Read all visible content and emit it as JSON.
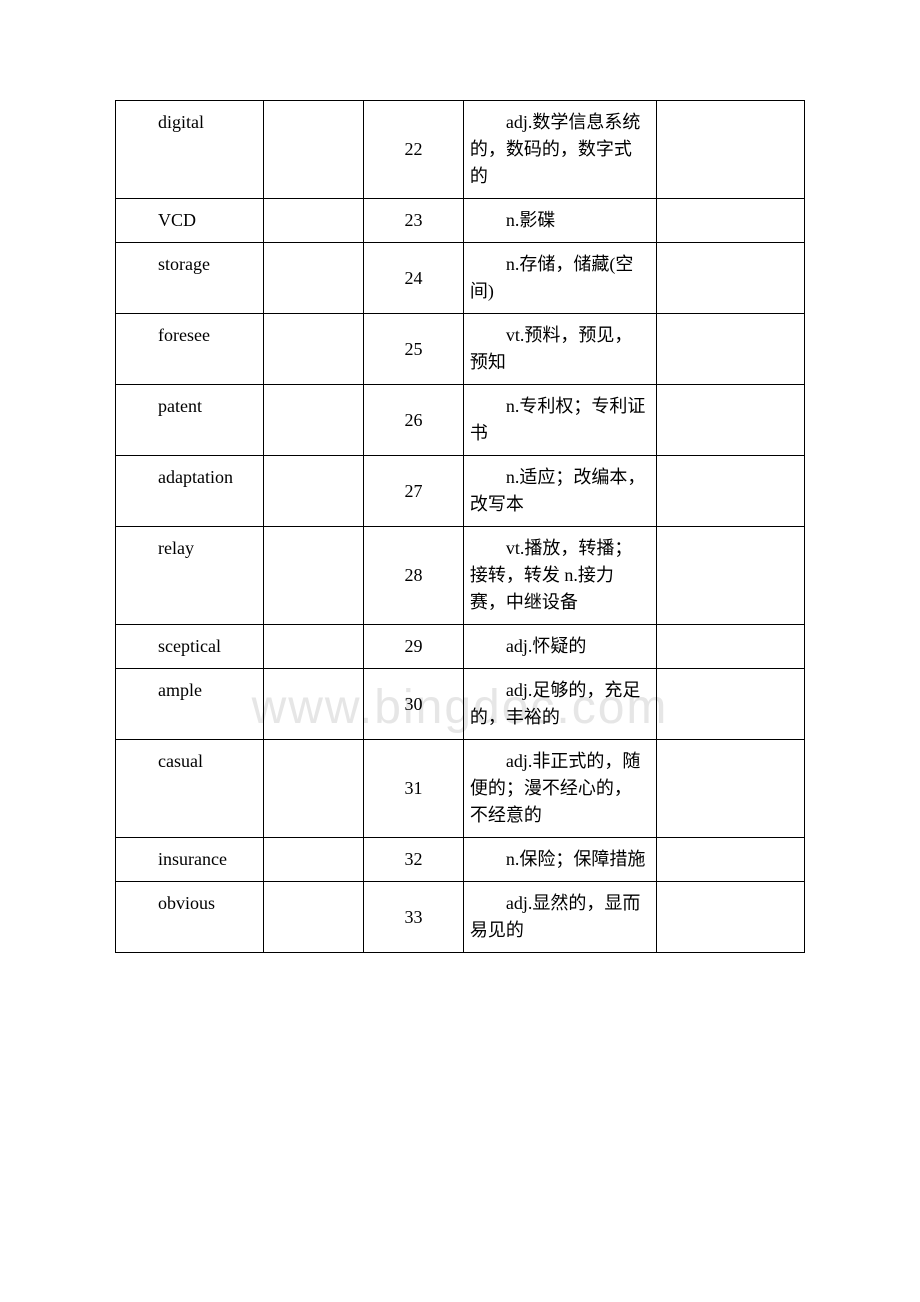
{
  "watermark": "www.bingdoc.com",
  "table": {
    "border_color": "#000000",
    "background_color": "#ffffff",
    "text_color": "#000000",
    "font_size": 18,
    "columns": [
      {
        "width_pct": 21.5,
        "align": "left"
      },
      {
        "width_pct": 14.5,
        "align": "left"
      },
      {
        "width_pct": 14.5,
        "align": "center"
      },
      {
        "width_pct": 28.0,
        "align": "left"
      },
      {
        "width_pct": 21.5,
        "align": "left"
      }
    ],
    "rows": [
      {
        "word": "digital",
        "num": "22",
        "def": "adj.数学信息系统的，数码的，数字式的"
      },
      {
        "word": "VCD",
        "num": "23",
        "def": "n.影碟"
      },
      {
        "word": "storage",
        "num": "24",
        "def": "n.存储，储藏(空间)"
      },
      {
        "word": "foresee",
        "num": "25",
        "def": "vt.预料，预见，预知"
      },
      {
        "word": "patent",
        "num": "26",
        "def": "n.专利权；专利证书"
      },
      {
        "word": "adaptation",
        "num": "27",
        "def": "n.适应；改编本，改写本"
      },
      {
        "word": "relay",
        "num": "28",
        "def": "vt.播放，转播；接转，转发 n.接力赛，中继设备"
      },
      {
        "word": "sceptical",
        "num": "29",
        "def": "adj.怀疑的"
      },
      {
        "word": "ample",
        "num": "30",
        "def": "adj.足够的，充足的，丰裕的"
      },
      {
        "word": "casual",
        "num": "31",
        "def": "adj.非正式的，随便的；漫不经心的，不经意的"
      },
      {
        "word": "insurance",
        "num": "32",
        "def": "n.保险；保障措施"
      },
      {
        "word": "obvious",
        "num": "33",
        "def": "adj.显然的，显而易见的"
      }
    ]
  }
}
